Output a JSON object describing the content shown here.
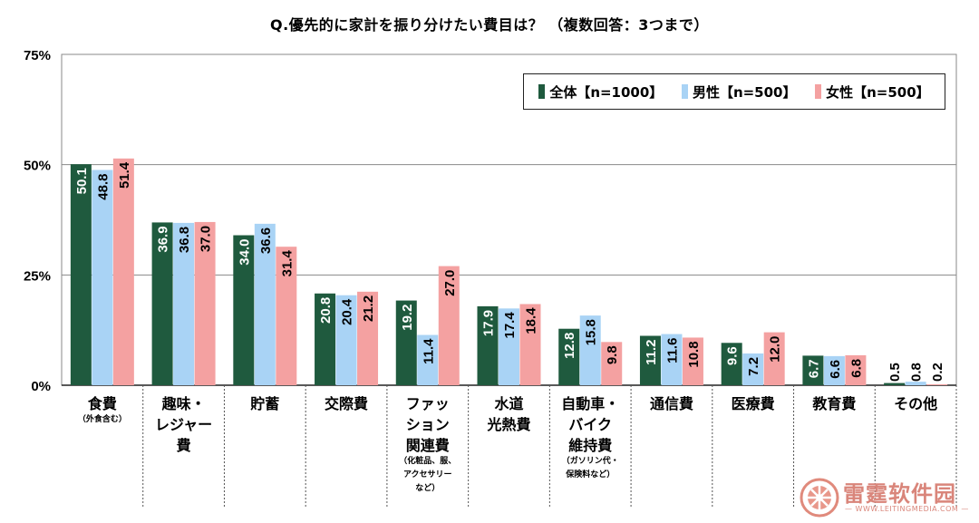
{
  "chart_data": {
    "type": "bar",
    "title": "Q.優先的に家計を振り分けたい費目は？ （複数回答：3つまで）",
    "y_ticks": [
      "75%",
      "50%",
      "25%",
      "0%"
    ],
    "ylim": [
      0,
      75
    ],
    "grid": true,
    "legend_position": "top-right",
    "categories": [
      {
        "lines": [
          "食費"
        ],
        "sub": [
          "（外食含む）"
        ]
      },
      {
        "lines": [
          "趣味・",
          "レジャー",
          "費"
        ],
        "sub": []
      },
      {
        "lines": [
          "貯蓄"
        ],
        "sub": []
      },
      {
        "lines": [
          "交際費"
        ],
        "sub": []
      },
      {
        "lines": [
          "ファッ",
          "ション",
          "関連費"
        ],
        "sub": [
          "（化粧品、服、",
          "アクセサリー",
          "など）"
        ]
      },
      {
        "lines": [
          "水道",
          "光熱費"
        ],
        "sub": []
      },
      {
        "lines": [
          "自動車・",
          "バイク",
          "維持費"
        ],
        "sub": [
          "（ガソリン代・",
          "保険料など）"
        ]
      },
      {
        "lines": [
          "通信費"
        ],
        "sub": []
      },
      {
        "lines": [
          "医療費"
        ],
        "sub": []
      },
      {
        "lines": [
          "教育費"
        ],
        "sub": []
      },
      {
        "lines": [
          "その他"
        ],
        "sub": []
      }
    ],
    "series": [
      {
        "name": "全体【n=1000】",
        "color": "#1f5a3e",
        "values": [
          50.1,
          36.9,
          34.0,
          20.8,
          19.2,
          17.9,
          12.8,
          11.2,
          9.6,
          6.7,
          0.5
        ]
      },
      {
        "name": "男性【n=500】",
        "color": "#a9d3f5",
        "values": [
          48.8,
          36.8,
          36.6,
          20.4,
          11.4,
          17.4,
          15.8,
          11.6,
          7.2,
          6.6,
          0.8
        ]
      },
      {
        "name": "女性【n=500】",
        "color": "#f4a1a1",
        "values": [
          51.4,
          37.0,
          31.4,
          21.2,
          27.0,
          18.4,
          9.8,
          10.8,
          12.0,
          6.8,
          0.2
        ]
      }
    ]
  },
  "watermark": {
    "text": "雷霆软件园",
    "sub": "— WWW.LEITINGMEDIA.COM —"
  }
}
